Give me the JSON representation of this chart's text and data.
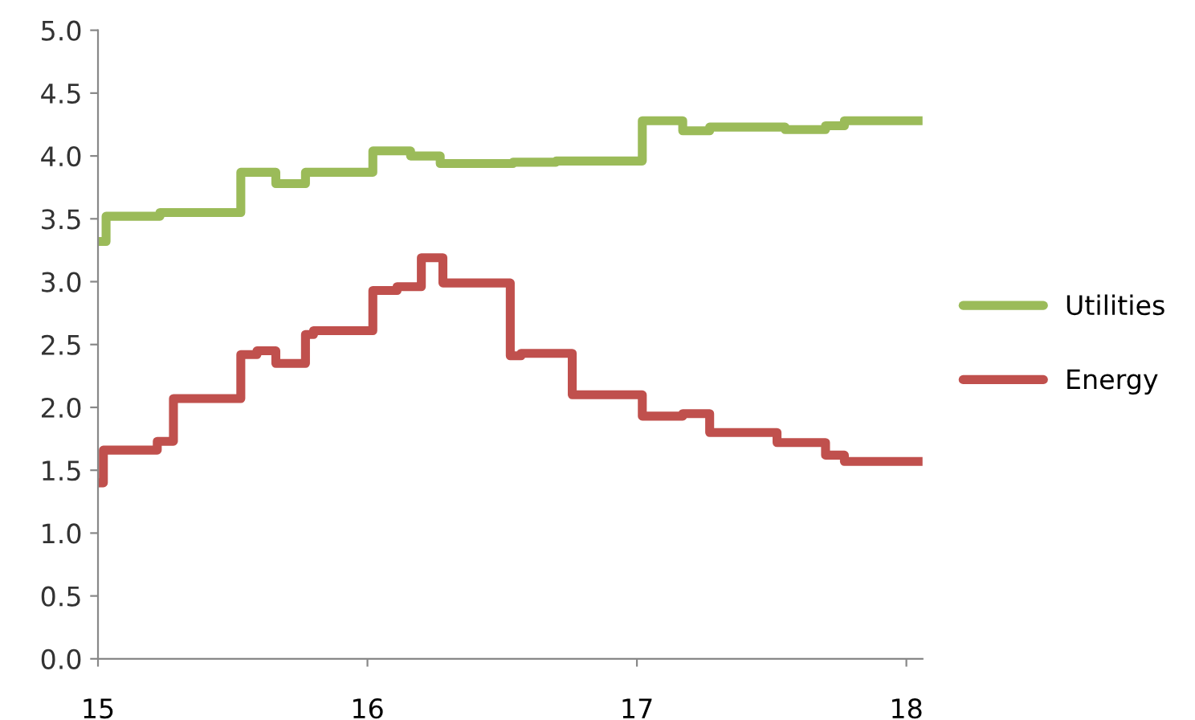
{
  "chart_data": {
    "type": "step",
    "xlim": [
      15,
      18.06
    ],
    "xticks": [
      15,
      16,
      17,
      18
    ],
    "ylim": [
      0,
      5
    ],
    "yticks": [
      {
        "value": 0,
        "label": "0.0"
      },
      {
        "value": 0.5,
        "label": "0.5"
      },
      {
        "value": 1,
        "label": "1.0"
      },
      {
        "value": 1.5,
        "label": "1.5"
      },
      {
        "value": 2,
        "label": "2.0"
      },
      {
        "value": 2.5,
        "label": "2.5"
      },
      {
        "value": 3,
        "label": "3.0"
      },
      {
        "value": 3.5,
        "label": "3.5"
      },
      {
        "value": 4,
        "label": "4.0"
      },
      {
        "value": 4.5,
        "label": "4.5"
      },
      {
        "value": 5,
        "label": "5.0"
      }
    ],
    "grid": false,
    "legend": "right",
    "series": [
      {
        "name": "Utilities",
        "color": "#9bbb59",
        "x": [
          15.0,
          15.03,
          15.23,
          15.53,
          15.66,
          15.77,
          16.02,
          16.16,
          16.27,
          16.54,
          16.7,
          17.02,
          17.17,
          17.27,
          17.55,
          17.7,
          17.77,
          18.06
        ],
        "values": [
          3.32,
          3.52,
          3.55,
          3.87,
          3.78,
          3.87,
          4.04,
          4.0,
          3.94,
          3.95,
          3.96,
          4.28,
          4.2,
          4.23,
          4.21,
          4.24,
          4.28,
          4.28
        ]
      },
      {
        "name": "Energy",
        "color": "#c0504d",
        "x": [
          15.0,
          15.02,
          15.22,
          15.28,
          15.53,
          15.59,
          15.66,
          15.77,
          15.8,
          16.02,
          16.11,
          16.2,
          16.28,
          16.53,
          16.57,
          16.76,
          17.02,
          17.17,
          17.27,
          17.52,
          17.7,
          17.77,
          18.06
        ],
        "values": [
          1.4,
          1.66,
          1.73,
          2.07,
          2.42,
          2.45,
          2.35,
          2.58,
          2.61,
          2.93,
          2.96,
          3.19,
          2.99,
          2.41,
          2.43,
          2.1,
          1.93,
          1.95,
          1.8,
          1.72,
          1.62,
          1.57,
          1.57
        ]
      }
    ]
  }
}
